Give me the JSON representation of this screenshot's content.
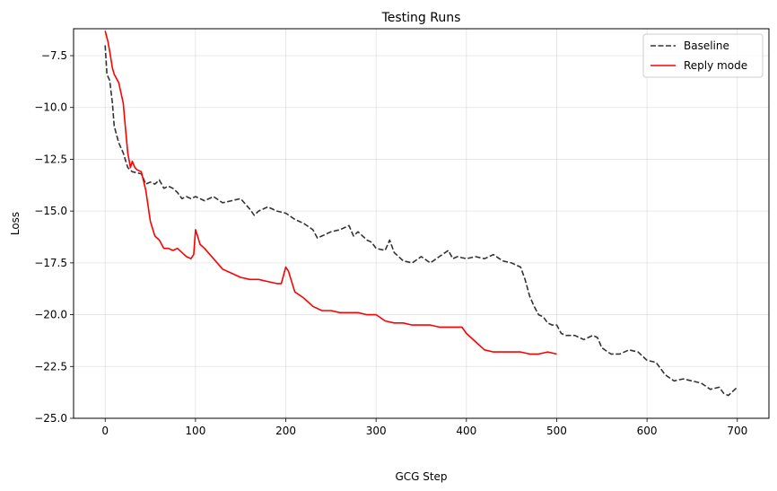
{
  "chart_data": {
    "type": "line",
    "title": "Testing Runs",
    "xlabel": "GCG Step",
    "ylabel": "Loss",
    "xlim": [
      -35,
      735
    ],
    "ylim": [
      -25.0,
      -6.2
    ],
    "xticks": [
      0,
      100,
      200,
      300,
      400,
      500,
      600,
      700
    ],
    "xtick_labels": [
      "0",
      "100",
      "200",
      "300",
      "400",
      "500",
      "600",
      "700"
    ],
    "yticks": [
      -7.5,
      -10.0,
      -12.5,
      -15.0,
      -17.5,
      -20.0,
      -22.5,
      -25.0
    ],
    "ytick_labels": [
      "−7.5",
      "−10.0",
      "−12.5",
      "−15.0",
      "−17.5",
      "−20.0",
      "−22.5",
      "−25.0"
    ],
    "grid": true,
    "legend_position": "top-right",
    "series": [
      {
        "name": "Baseline",
        "color": "#333333",
        "dash": "dashed",
        "x": [
          0,
          2,
          5,
          8,
          10,
          15,
          20,
          25,
          30,
          40,
          45,
          50,
          55,
          60,
          65,
          70,
          75,
          80,
          85,
          90,
          95,
          100,
          110,
          120,
          130,
          140,
          150,
          160,
          165,
          170,
          180,
          190,
          200,
          210,
          220,
          230,
          235,
          240,
          250,
          260,
          270,
          275,
          280,
          290,
          295,
          300,
          310,
          315,
          320,
          330,
          340,
          350,
          360,
          370,
          380,
          385,
          390,
          400,
          410,
          420,
          430,
          440,
          450,
          460,
          465,
          470,
          475,
          480,
          485,
          490,
          495,
          500,
          505,
          510,
          520,
          530,
          540,
          545,
          550,
          560,
          570,
          580,
          590,
          600,
          610,
          620,
          630,
          640,
          650,
          660,
          670,
          680,
          685,
          690,
          695,
          700
        ],
        "y": [
          -7.0,
          -8.4,
          -8.7,
          -9.8,
          -10.9,
          -11.7,
          -12.2,
          -12.9,
          -13.1,
          -13.2,
          -13.7,
          -13.6,
          -13.7,
          -13.5,
          -13.9,
          -13.8,
          -13.9,
          -14.1,
          -14.4,
          -14.3,
          -14.4,
          -14.3,
          -14.5,
          -14.3,
          -14.6,
          -14.5,
          -14.4,
          -14.9,
          -15.2,
          -15.0,
          -14.8,
          -15.0,
          -15.1,
          -15.4,
          -15.6,
          -15.9,
          -16.3,
          -16.2,
          -16.0,
          -15.9,
          -15.7,
          -16.2,
          -16.0,
          -16.4,
          -16.5,
          -16.8,
          -16.9,
          -16.4,
          -17.0,
          -17.4,
          -17.5,
          -17.2,
          -17.5,
          -17.2,
          -16.9,
          -17.3,
          -17.2,
          -17.3,
          -17.2,
          -17.3,
          -17.1,
          -17.4,
          -17.5,
          -17.7,
          -18.3,
          -19.1,
          -19.6,
          -20.0,
          -20.1,
          -20.4,
          -20.5,
          -20.5,
          -20.9,
          -21.0,
          -21.0,
          -21.2,
          -21.0,
          -21.1,
          -21.6,
          -21.9,
          -21.9,
          -21.7,
          -21.8,
          -22.2,
          -22.3,
          -22.9,
          -23.2,
          -23.1,
          -23.2,
          -23.3,
          -23.6,
          -23.5,
          -23.8,
          -23.9,
          -23.7,
          -23.5
        ]
      },
      {
        "name": "Reply mode",
        "color": "#ff0000",
        "dash": "solid",
        "x": [
          0,
          3,
          5,
          8,
          10,
          15,
          20,
          22,
          25,
          28,
          30,
          33,
          35,
          40,
          45,
          50,
          55,
          60,
          65,
          70,
          75,
          80,
          85,
          90,
          95,
          98,
          100,
          103,
          105,
          110,
          120,
          130,
          140,
          150,
          160,
          170,
          180,
          190,
          195,
          200,
          203,
          205,
          210,
          220,
          230,
          240,
          250,
          260,
          270,
          280,
          290,
          300,
          310,
          320,
          330,
          340,
          350,
          360,
          370,
          380,
          390,
          395,
          400,
          410,
          420,
          430,
          440,
          450,
          460,
          470,
          480,
          490,
          500
        ],
        "y": [
          -6.3,
          -6.8,
          -7.3,
          -8.1,
          -8.4,
          -8.8,
          -9.8,
          -10.8,
          -12.2,
          -12.9,
          -12.6,
          -12.9,
          -13.0,
          -13.1,
          -14.0,
          -15.5,
          -16.2,
          -16.4,
          -16.8,
          -16.8,
          -16.9,
          -16.8,
          -17.0,
          -17.2,
          -17.3,
          -17.1,
          -15.9,
          -16.3,
          -16.6,
          -16.8,
          -17.3,
          -17.8,
          -18.0,
          -18.2,
          -18.3,
          -18.3,
          -18.4,
          -18.5,
          -18.5,
          -17.7,
          -17.9,
          -18.2,
          -18.9,
          -19.2,
          -19.6,
          -19.8,
          -19.8,
          -19.9,
          -19.9,
          -19.9,
          -20.0,
          -20.0,
          -20.3,
          -20.4,
          -20.4,
          -20.5,
          -20.5,
          -20.5,
          -20.6,
          -20.6,
          -20.6,
          -20.6,
          -20.9,
          -21.3,
          -21.7,
          -21.8,
          -21.8,
          -21.8,
          -21.8,
          -21.9,
          -21.9,
          -21.8,
          -21.9
        ]
      }
    ]
  }
}
